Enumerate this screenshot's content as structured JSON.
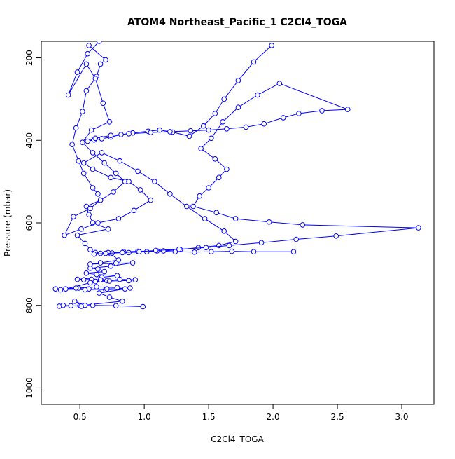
{
  "chart_data": {
    "type": "line",
    "title": "ATOM4 Northeast_Pacific_1 C2Cl4_TOGA",
    "xlabel": "C2Cl4_TOGA",
    "ylabel": "Pressure (mbar)",
    "xlim": [
      0.2,
      3.25
    ],
    "ylim": [
      1040,
      160
    ],
    "y_reversed": true,
    "x_ticks": [
      "0.5",
      "1.0",
      "1.5",
      "2.0",
      "2.5",
      "3.0"
    ],
    "x_tick_values": [
      0.5,
      1.0,
      1.5,
      2.0,
      2.5,
      3.0
    ],
    "y_ticks": [
      "200",
      "400",
      "600",
      "800",
      "1000"
    ],
    "y_tick_values": [
      200,
      400,
      600,
      800,
      1000
    ],
    "grid": false,
    "legend": "none",
    "marker": "open-circle",
    "color": "#0000ff",
    "series": [
      {
        "x": [
          0.57,
          0.7,
          0.66,
          0.63,
          0.55,
          0.52,
          0.47,
          0.44,
          0.49,
          0.53,
          0.6,
          0.64,
          0.66,
          0.55,
          0.57,
          0.6,
          0.72,
          0.48,
          0.54,
          0.58,
          0.62,
          0.74,
          0.8,
          0.66,
          0.58,
          0.78,
          0.91,
          0.74,
          0.58,
          0.64,
          0.69,
          0.55,
          0.63,
          0.79,
          0.67,
          0.48,
          0.53,
          0.59,
          0.66,
          0.71,
          0.62,
          0.73,
          0.88,
          0.93,
          0.81,
          0.58,
          0.39,
          0.35,
          0.49,
          0.63,
          0.79,
          0.85,
          0.7,
          0.57,
          0.47,
          0.31,
          0.54,
          0.71,
          0.89,
          0.65,
          0.73,
          0.83,
          0.52,
          0.46,
          0.54,
          0.5,
          0.34,
          0.37,
          0.43,
          0.51,
          0.6,
          0.78,
          0.99
        ],
        "y": [
          170,
          205,
          215,
          245,
          280,
          330,
          370,
          410,
          450,
          480,
          515,
          530,
          545,
          560,
          580,
          600,
          615,
          630,
          650,
          665,
          672,
          675,
          690,
          697,
          700,
          698,
          697,
          705,
          710,
          712,
          718,
          722,
          725,
          728,
          732,
          737,
          738,
          737,
          738,
          740,
          742,
          741,
          740,
          738,
          737,
          745,
          760,
          762,
          758,
          755,
          757,
          760,
          762,
          760,
          758,
          760,
          762,
          760,
          758,
          770,
          780,
          790,
          800,
          790,
          800,
          801,
          802,
          800,
          801,
          802,
          800,
          801,
          803
        ]
      },
      {
        "x": [
          0.65,
          0.56,
          0.48,
          0.41,
          0.55,
          0.62,
          0.68,
          0.73,
          0.59,
          0.52,
          0.6,
          0.69,
          0.78,
          0.85,
          0.76,
          0.66,
          0.58,
          0.45,
          0.38,
          0.51,
          0.64,
          0.8,
          0.92,
          1.05,
          0.97,
          0.88,
          0.74,
          0.6,
          0.53,
          0.67,
          0.81,
          0.95,
          1.08,
          1.2,
          1.33,
          1.47,
          1.62,
          1.71,
          1.58,
          1.42,
          1.28,
          1.15,
          1.02,
          0.88,
          0.75,
          0.66,
          0.72,
          0.84,
          0.95,
          1.1,
          1.24,
          1.39,
          1.52,
          1.68,
          1.85,
          2.16
        ],
        "y": [
          160,
          190,
          235,
          290,
          215,
          250,
          310,
          355,
          375,
          405,
          430,
          455,
          480,
          500,
          525,
          545,
          565,
          585,
          630,
          615,
          600,
          590,
          570,
          545,
          520,
          500,
          490,
          470,
          455,
          430,
          450,
          475,
          500,
          530,
          560,
          590,
          620,
          645,
          655,
          660,
          665,
          668,
          670,
          672,
          673,
          674,
          672,
          670,
          669,
          668,
          670,
          671,
          670,
          669,
          670,
          670
        ]
      },
      {
        "x": [
          1.99,
          1.85,
          1.73,
          1.62,
          1.55,
          1.46,
          1.35,
          1.22,
          1.12,
          1.03,
          0.91,
          0.82,
          0.74,
          0.67,
          0.61,
          0.56,
          0.62,
          0.74,
          0.88,
          1.05,
          1.2,
          1.36,
          1.5,
          1.64,
          1.79,
          1.93,
          2.08,
          2.2,
          2.38,
          2.58,
          2.05,
          1.88,
          1.73,
          1.61,
          1.52,
          1.44,
          1.55,
          1.64,
          1.58,
          1.5,
          1.43,
          1.38,
          1.56,
          1.71,
          1.97,
          2.23,
          3.13,
          2.49,
          2.18,
          1.91,
          1.66,
          1.48,
          1.27,
          1.09,
          0.96,
          0.83,
          0.7,
          0.61
        ],
        "y": [
          170,
          210,
          255,
          300,
          335,
          365,
          390,
          380,
          375,
          378,
          382,
          386,
          392,
          396,
          399,
          402,
          395,
          388,
          384,
          381,
          379,
          377,
          375,
          372,
          368,
          360,
          345,
          335,
          328,
          325,
          262,
          290,
          320,
          355,
          395,
          420,
          445,
          470,
          490,
          515,
          535,
          560,
          575,
          590,
          598,
          605,
          612,
          632,
          640,
          648,
          655,
          660,
          664,
          667,
          670,
          672,
          674,
          676
        ]
      }
    ]
  }
}
